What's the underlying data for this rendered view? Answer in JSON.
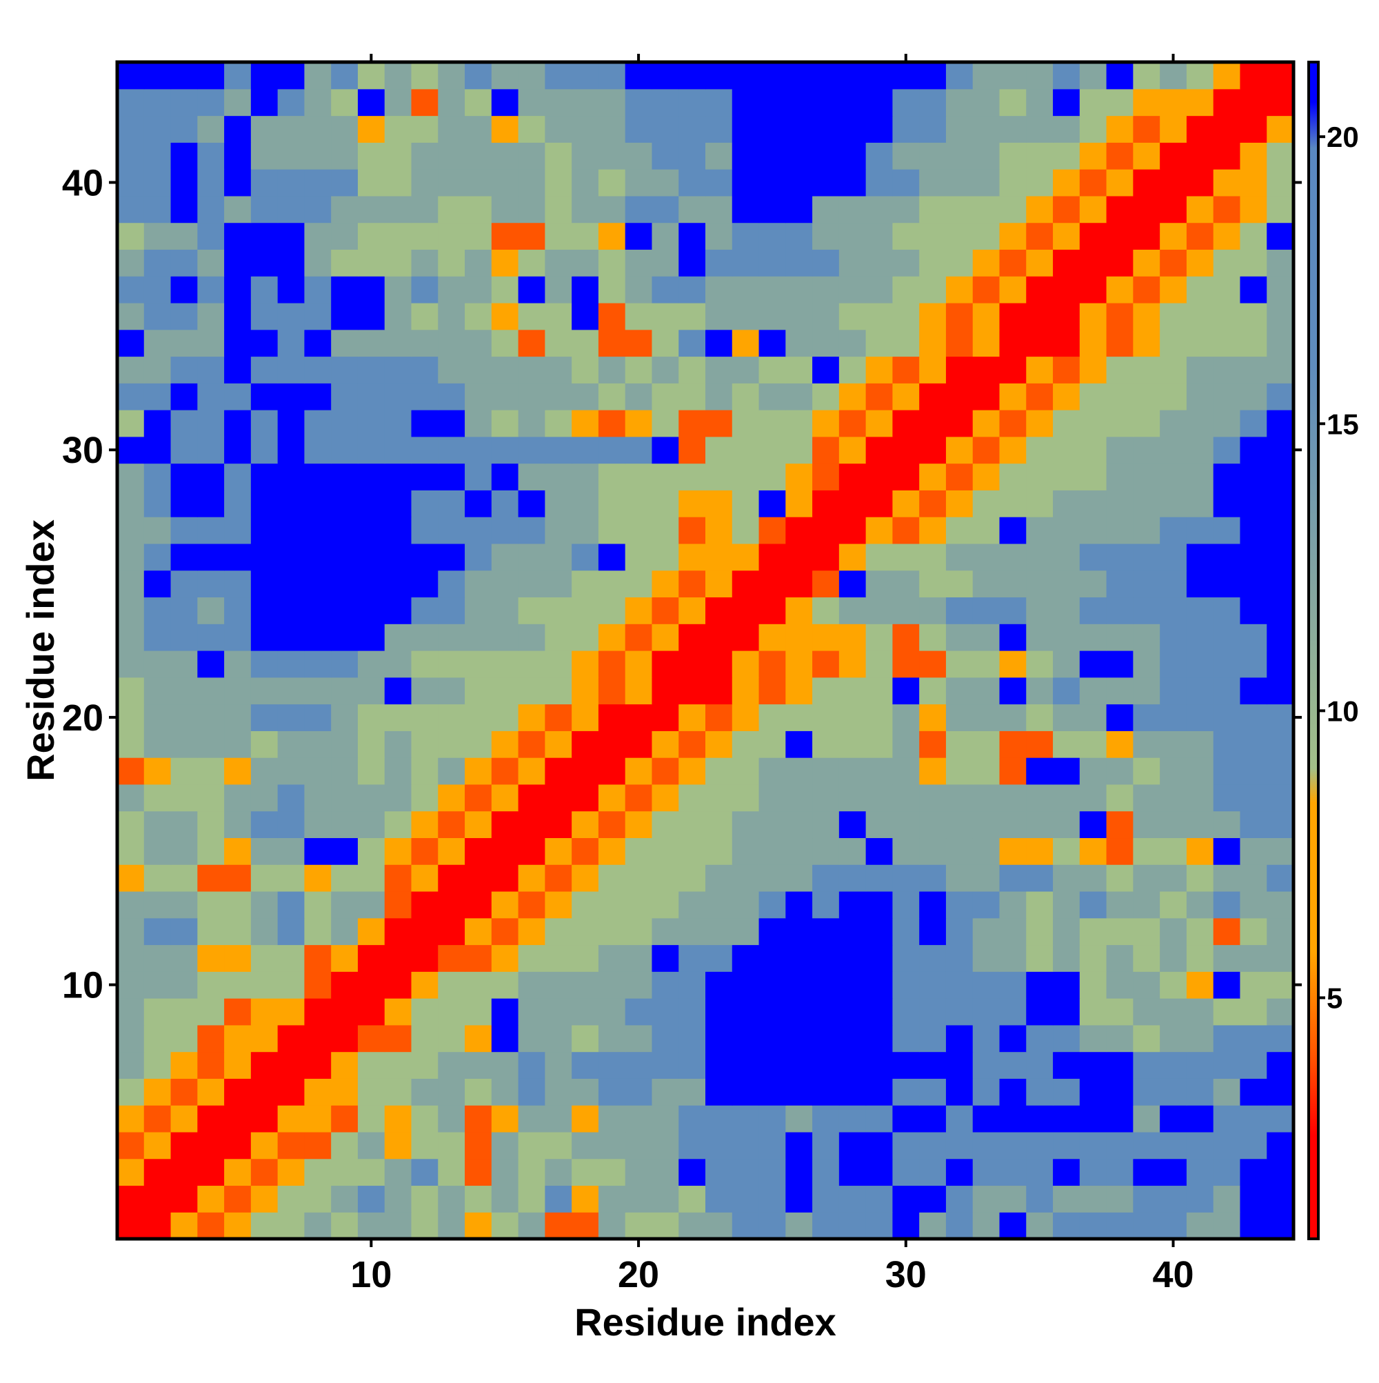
{
  "chart_data": {
    "type": "heatmap",
    "title": "",
    "xlabel": "Residue index",
    "ylabel": "Residue index",
    "x_range": [
      1,
      44
    ],
    "y_range": [
      1,
      44
    ],
    "x_ticks": [
      10,
      20,
      30,
      40
    ],
    "y_ticks": [
      10,
      20,
      30,
      40
    ],
    "colorbar": {
      "range": [
        0.8,
        21.3
      ],
      "ticks": [
        5,
        10,
        15,
        20
      ],
      "stops": [
        {
          "value": 0.8,
          "color": "#ff0000"
        },
        {
          "value": 2.6,
          "color": "#ff0000"
        },
        {
          "value": 4.0,
          "color": "#ff5500"
        },
        {
          "value": 5.8,
          "color": "#ffa500"
        },
        {
          "value": 8.4,
          "color": "#ffa500"
        },
        {
          "value": 9.0,
          "color": "#a2bf88"
        },
        {
          "value": 12.0,
          "color": "#85a6a0"
        },
        {
          "value": 16.0,
          "color": "#5f8cbd"
        },
        {
          "value": 19.8,
          "color": "#5a88c0"
        },
        {
          "value": 20.6,
          "color": "#0000ff"
        },
        {
          "value": 21.3,
          "color": "#0000ff"
        }
      ]
    },
    "cell_codes": {
      "R": {
        "value": 1.5,
        "color": "#ff0000"
      },
      "r": {
        "value": 4.5,
        "color": "#ff5500"
      },
      "o": {
        "value": 7,
        "color": "#ffa500"
      },
      "g": {
        "value": 10.5,
        "color": "#a2bf88"
      },
      "t": {
        "value": 13,
        "color": "#85a6a0"
      },
      "s": {
        "value": 17,
        "color": "#5f8cbd"
      },
      "b": {
        "value": 21,
        "color": "#0000ff"
      }
    },
    "rows_bottom_to_top": [
      "RRoroggtgttgtogtrrtggttsstsssbtstbtsssssttbb",
      "RRRoroggtstgtgtgsotttgsssbsssbbsttstttssstbb",
      "oRRRorogggtsgrtgtggttbsssbsbbssbsssbssbbssbb",
      "roRRRorrgtoggrtggttttssssbsbbssssssssssssssb",
      "oroRRRoorgogtrottotttsssstsssbbsbbbbbbtbbsss",
      "goroRRRooggttgtsttssttbbbbbbbssbsbssbbssstbb",
      "tgoroRRRogggtttstsssssbbbbbbbbbbsssbbbsssssb",
      "tggrooRRRrrggobttgttssbbbbbbbssbsbssttgttsss",
      "tgggrooRRRogggbttttsssbbbbbbbsssssbbggtttggt",
      "tttggggrRRRogggtttttssbbbbbbbsssssbbgttgobgg",
      "tttooggroRRRrrogggttbssbbbbbbsssttgtgtgtgttt",
      "tssggtsgtoRRRoroggggttttbbbbbsbsttgtgggtgrgt",
      "tttggtsgttrRRRoroggggtttsbsbbsbsstgtsttgtstt",
      "oggrrggoggroRRRoroggggttttsssssttssttgttgtts",
      "gttgottbbgoroRRRoroggggtttttbttttoogorggobtt",
      "gttgtsstttgoroRRRorogggttttbttttttttbrttttss",
      "tgggttsttttgoroRRRorogggtttttttttttttgtttsss",
      "roggottttgtgtoroRRRoroggttttttoggrbbttgttsss",
      "gttttgtttgtgggoroRRRoroggbgggtrggrrggotttsss",
      "gttttssstggggggoroRRRorogggggtotttgttbssssss",
      "gtttttttttbttggggoroRRRorogggbgttbtstttsssbb",
      "tttbtssssttggggggoroRRRororogrrggogtbbtssssb",
      "tssssbbbbbttttttggoroRRRoooogrgttbtttttssssb",
      "tsstsbbbbbbssttggggoroRRRogttttsssttssssssbb",
      "tbsssbbbbbbbsttttgggoroRRRrbttggtttttsssbbbb",
      "tsbbbbbbbbbbbstttsbggoooRRRogggtttttssssbbbb",
      "ttsssbbbbbbsssssttgggrogrRRRoroggbtttttsssbb",
      "tsbbsbbbbbbssbsbttgggoogboRRRorogggttttttbbb",
      "tsbbsbbbbbbbbsbtttgggggggorRRRoroggggttttbbb",
      "bbssbsbsssssssssssssbrggggroRRRorogggttttsbb",
      "gbssbsbssssbbtgtgorogrrgggoroRRRoroggggtttsb",
      "ssbssbbbssssstttttgtggtgttgoroRRRoroggggttts",
      "ttssbssssssstttttgtgtgttggbgoroRRRorogggtttt",
      "btttbbsbttttttgrggrrgsbobtttggoroRRRoroggggts",
      "tsstbsssbbtgtgoggbrgggtttttgggoroRRRoroggggt",
      "ssbsbsbsbbtsttgbtbgtsstttttttggoroRRRoroggbt",
      "tsstbbbtgggtgtogttgttbssssstttggoroRRRoroggt",
      "gttsbbbttgggggrrggobtbtssstttggggoroRRRorogb",
      "ssbstsssttttggttgttssttbbbttttggggoroRRRorog",
      "ssbsbssssggtttttgtgttssbbbbbsstttggoroRRRoog",
      "ssbsbttttggtttttgtttsstbbbbbsttttgggoroRRRog",
      "ssstbttttoggttogtttssssbbbbbbsstttttgoroRRRo",
      "sssstbstgbtrtgbttttssssbbbbbbssttgtbggoooRRR",
      "bbbbsbbtsgtgtsttsssbbbbbbbbbbbbstttstbgtgoRR"
    ]
  }
}
